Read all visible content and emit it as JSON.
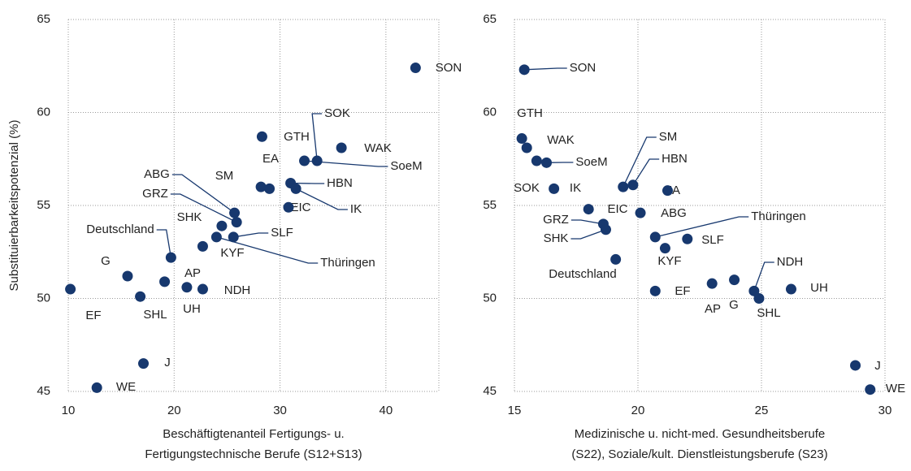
{
  "chart_data": [
    {
      "type": "scatter",
      "ylabel": "Substituierbarkeitspotenzial (%)",
      "xlabel": [
        "Beschäftigtenanteil Fertigungs- u.",
        "Fertigungstechnische Berufe (S12+S13)"
      ],
      "xlim": [
        10,
        45
      ],
      "xticks": [
        10,
        20,
        30,
        40
      ],
      "ylim": [
        45,
        65
      ],
      "yticks": [
        45,
        50,
        55,
        60,
        65
      ],
      "grid": true,
      "color": "#17386e",
      "labels": [
        "SON",
        "GTH",
        "WAK",
        "SOK",
        "SoeM",
        "EA",
        "SM",
        "HBN",
        "IK",
        "EIC",
        "ABG",
        "GRZ",
        "SHK",
        "SLF",
        "Thüringen",
        "KYF",
        "Deutschland",
        "AP",
        "UH",
        "NDH",
        "G",
        "EF",
        "SHL",
        "J",
        "WE"
      ],
      "x": [
        42.8,
        28.3,
        35.8,
        33.5,
        32.3,
        29.0,
        28.2,
        31.0,
        31.5,
        30.8,
        25.7,
        25.9,
        24.5,
        25.6,
        24.0,
        22.7,
        19.7,
        19.1,
        21.2,
        22.7,
        15.6,
        10.2,
        16.8,
        17.1,
        12.7
      ],
      "y": [
        62.4,
        58.7,
        58.1,
        57.4,
        57.4,
        55.9,
        56.0,
        56.2,
        55.9,
        54.9,
        54.6,
        54.1,
        53.9,
        53.3,
        53.3,
        52.8,
        52.2,
        50.9,
        50.6,
        50.5,
        51.2,
        50.5,
        50.1,
        46.5,
        45.2
      ]
    },
    {
      "type": "scatter",
      "xlabel": [
        "Medizinische u. nicht-med. Gesundheitsberufe",
        "(S22), Soziale/kult. Dienstleistungsberufe (S23)"
      ],
      "xlim": [
        15,
        30
      ],
      "xticks": [
        15,
        20,
        25,
        30
      ],
      "ylim": [
        45,
        65
      ],
      "yticks": [
        45,
        50,
        55,
        60,
        65
      ],
      "grid": true,
      "color": "#17386e",
      "labels": [
        "SON",
        "GTH",
        "WAK",
        "SOK",
        "SoeM",
        "EA",
        "SM",
        "HBN",
        "IK",
        "EIC",
        "ABG",
        "GRZ",
        "SHK",
        "SLF",
        "Thüringen",
        "KYF",
        "Deutschland",
        "AP",
        "UH",
        "NDH",
        "G",
        "EF",
        "SHL",
        "J",
        "WE"
      ],
      "x": [
        15.4,
        15.3,
        15.5,
        15.9,
        16.3,
        21.2,
        19.4,
        19.8,
        16.6,
        18.0,
        20.1,
        18.6,
        18.7,
        22.0,
        20.7,
        21.1,
        19.1,
        23.0,
        26.2,
        24.7,
        23.9,
        20.7,
        24.9,
        28.8,
        29.4
      ],
      "y": [
        62.3,
        58.6,
        58.1,
        57.4,
        57.3,
        55.8,
        56.0,
        56.1,
        55.9,
        54.8,
        54.6,
        54.0,
        53.7,
        53.2,
        53.3,
        52.7,
        52.1,
        50.8,
        50.5,
        50.4,
        51.0,
        50.4,
        50.0,
        46.4,
        45.1
      ]
    }
  ]
}
